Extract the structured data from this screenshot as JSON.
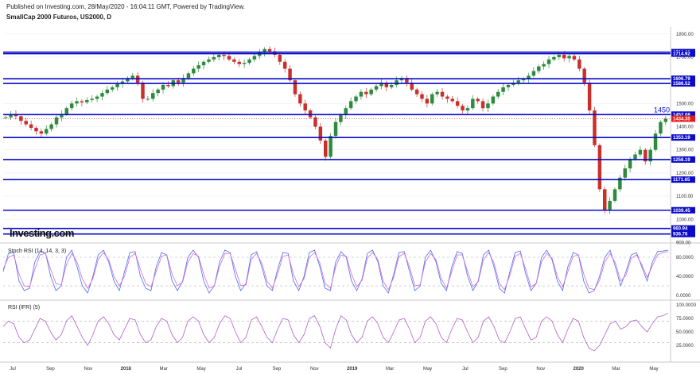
{
  "header": {
    "published": "Published on Investing.com, 28/May/2020 - 16:04:11 GMT, Powered by TradingView.",
    "title": "SmallCap 2000 Futuros, US2000, D"
  },
  "watermark": "Investing.com",
  "colors": {
    "level_line": "#0a0ac8",
    "price_tag": "#e31a1a",
    "candle_up": "#2e8b3c",
    "candle_down": "#c9302c",
    "stoch_k": "#4a6ee8",
    "stoch_d": "#d06bd8",
    "rsi": "#b05fc8"
  },
  "chart_data": [
    {
      "type": "line",
      "panel": "price",
      "y_ticks": [
        "1800.00",
        "1700.00",
        "1600.00",
        "1500.00",
        "1400.00",
        "1300.00",
        "1200.00",
        "1100.00",
        "1000.00",
        "900.00"
      ],
      "ylim": [
        905,
        1830
      ],
      "x_ticks": [
        "Jul",
        "Sep",
        "Nov",
        "2018",
        "Mar",
        "May",
        "Jul",
        "Sep",
        "Nov",
        "2019",
        "Mar",
        "May",
        "Jul",
        "Sep",
        "Nov",
        "2020",
        "Mar",
        "May"
      ],
      "levels": [
        {
          "value": 1721.68,
          "label": "1721.68"
        },
        {
          "value": 1714.92,
          "label": "1714.92"
        },
        {
          "value": 1606.79,
          "label": "1606.79"
        },
        {
          "value": 1586.52,
          "label": "1586.52"
        },
        {
          "value": 1452.08,
          "label": "1452.08"
        },
        {
          "value": 1353.19,
          "label": "1353.19"
        },
        {
          "value": 1258.19,
          "label": "1258.19"
        },
        {
          "value": 1171.65,
          "label": "1171.65"
        },
        {
          "value": 1039.45,
          "label": "1039.45"
        },
        {
          "value": 960.94,
          "label": "960.94"
        },
        {
          "value": 936.76,
          "label": "936.76"
        }
      ],
      "last_price": {
        "value": 1434.35,
        "label": "1434.35"
      },
      "annotation": "1450",
      "close_series": [
        1440,
        1455,
        1445,
        1425,
        1410,
        1395,
        1380,
        1370,
        1390,
        1410,
        1440,
        1455,
        1480,
        1500,
        1510,
        1505,
        1515,
        1520,
        1530,
        1545,
        1560,
        1570,
        1585,
        1595,
        1610,
        1620,
        1590,
        1520,
        1520,
        1545,
        1560,
        1580,
        1575,
        1600,
        1590,
        1610,
        1630,
        1650,
        1665,
        1680,
        1690,
        1700,
        1710,
        1705,
        1690,
        1680,
        1670,
        1675,
        1690,
        1705,
        1720,
        1735,
        1725,
        1710,
        1680,
        1650,
        1600,
        1540,
        1500,
        1470,
        1440,
        1400,
        1340,
        1270,
        1360,
        1420,
        1450,
        1480,
        1510,
        1530,
        1550,
        1540,
        1560,
        1575,
        1590,
        1570,
        1580,
        1600,
        1610,
        1590,
        1560,
        1540,
        1520,
        1500,
        1540,
        1550,
        1530,
        1520,
        1510,
        1490,
        1470,
        1480,
        1520,
        1510,
        1480,
        1500,
        1530,
        1550,
        1570,
        1580,
        1590,
        1600,
        1605,
        1620,
        1640,
        1660,
        1670,
        1690,
        1700,
        1710,
        1695,
        1705,
        1690,
        1650,
        1590,
        1470,
        1320,
        1130,
        1040,
        1080,
        1130,
        1180,
        1220,
        1260,
        1280,
        1300,
        1250,
        1300,
        1370,
        1420,
        1434
      ],
      "series": [
        {
          "name": "SmallCap 2000 Futuros",
          "ref": "close_series"
        }
      ]
    },
    {
      "type": "line",
      "panel": "stoch",
      "title": "Stoch RSI (14, 14, 3, 3)",
      "y_ticks": [
        "80.0000",
        "40.0000",
        "0.0000"
      ],
      "ylim": [
        0,
        100
      ],
      "k_series": [
        50,
        88,
        90,
        30,
        10,
        15,
        70,
        92,
        90,
        40,
        10,
        20,
        80,
        95,
        60,
        20,
        5,
        40,
        85,
        95,
        70,
        30,
        10,
        50,
        90,
        92,
        40,
        15,
        10,
        60,
        90,
        85,
        30,
        10,
        30,
        80,
        95,
        80,
        30,
        5,
        20,
        70,
        95,
        90,
        40,
        10,
        25,
        85,
        92,
        60,
        20,
        10,
        55,
        90,
        88,
        30,
        10,
        40,
        90,
        95,
        60,
        15,
        10,
        70,
        92,
        80,
        30,
        10,
        35,
        88,
        95,
        70,
        20,
        5,
        45,
        90,
        92,
        50,
        10,
        20,
        80,
        95,
        70,
        25,
        10,
        60,
        92,
        88,
        40,
        10,
        30,
        85,
        95,
        60,
        15,
        5,
        50,
        90,
        93,
        45,
        10,
        25,
        80,
        95,
        75,
        30,
        10,
        60,
        90,
        85,
        30,
        5,
        10,
        40,
        80,
        95,
        60,
        20,
        50,
        85,
        90,
        60,
        30,
        70,
        92,
        93,
        95
      ],
      "d_series": [
        55,
        80,
        85,
        45,
        20,
        18,
        55,
        85,
        88,
        55,
        25,
        22,
        65,
        88,
        70,
        35,
        15,
        35,
        75,
        90,
        75,
        40,
        20,
        40,
        80,
        88,
        55,
        25,
        18,
        50,
        82,
        85,
        45,
        20,
        28,
        70,
        88,
        82,
        45,
        15,
        20,
        60,
        88,
        88,
        55,
        20,
        22,
        75,
        88,
        68,
        30,
        15,
        45,
        82,
        85,
        45,
        18,
        35,
        80,
        90,
        68,
        25,
        15,
        60,
        85,
        82,
        45,
        18,
        32,
        78,
        90,
        75,
        30,
        12,
        38,
        82,
        88,
        60,
        20,
        22,
        70,
        88,
        75,
        35,
        15,
        50,
        85,
        85,
        50,
        18,
        28,
        75,
        90,
        68,
        25,
        12,
        42,
        82,
        88,
        55,
        18,
        25,
        70,
        88,
        78,
        40,
        18,
        50,
        82,
        85,
        45,
        15,
        12,
        32,
        70,
        88,
        68,
        30,
        42,
        78,
        85,
        65,
        38,
        62,
        85,
        90,
        92
      ]
    },
    {
      "type": "line",
      "panel": "rsi",
      "title": "RSI (IFR) (5)",
      "y_ticks": [
        "100.0000",
        "75.0000",
        "50.0000",
        "25.0000"
      ],
      "ylim": [
        0,
        100
      ],
      "values": [
        60,
        70,
        65,
        40,
        30,
        35,
        55,
        75,
        70,
        50,
        35,
        45,
        70,
        80,
        60,
        40,
        25,
        45,
        70,
        78,
        65,
        45,
        35,
        55,
        75,
        72,
        45,
        30,
        35,
        60,
        75,
        70,
        45,
        30,
        40,
        70,
        78,
        70,
        45,
        30,
        40,
        65,
        80,
        75,
        50,
        30,
        40,
        72,
        78,
        60,
        40,
        30,
        55,
        75,
        72,
        45,
        30,
        45,
        75,
        80,
        60,
        30,
        20,
        55,
        80,
        72,
        45,
        30,
        40,
        70,
        78,
        65,
        40,
        30,
        50,
        72,
        75,
        55,
        30,
        40,
        70,
        78,
        65,
        40,
        30,
        55,
        75,
        72,
        50,
        30,
        40,
        70,
        78,
        60,
        35,
        30,
        50,
        75,
        78,
        55,
        35,
        40,
        70,
        78,
        70,
        45,
        30,
        55,
        75,
        70,
        40,
        20,
        15,
        25,
        45,
        65,
        70,
        55,
        60,
        70,
        72,
        60,
        50,
        65,
        78,
        80,
        85
      ]
    }
  ]
}
